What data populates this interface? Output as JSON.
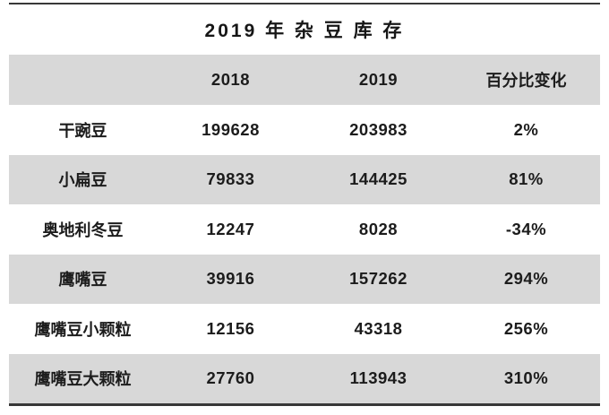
{
  "title": "2019 年 杂 豆 库 存",
  "header": {
    "col_label": "",
    "col_2018": "2018",
    "col_2019": "2019",
    "col_change": "百分比变化"
  },
  "rows": [
    {
      "label": "干豌豆",
      "v2018": "199628",
      "v2019": "203983",
      "change": "2%"
    },
    {
      "label": "小扁豆",
      "v2018": "79833",
      "v2019": "144425",
      "change": "81%"
    },
    {
      "label": "奥地利冬豆",
      "v2018": "12247",
      "v2019": "8028",
      "change": "-34%"
    },
    {
      "label": "鹰嘴豆",
      "v2018": "39916",
      "v2019": "157262",
      "change": "294%"
    },
    {
      "label": "鹰嘴豆小颗粒",
      "v2018": "12156",
      "v2019": "43318",
      "change": "256%"
    },
    {
      "label": "鹰嘴豆大颗粒",
      "v2018": "27760",
      "v2019": "113943",
      "change": "310%"
    }
  ],
  "colors": {
    "shaded_row": "#d8d8d8",
    "rule": "#383838",
    "text": "#1c1c1c",
    "background": "#ffffff"
  },
  "chart_data": {
    "type": "table",
    "title": "2019 年 杂 豆 库 存",
    "categories": [
      "干豌豆",
      "小扁豆",
      "奥地利冬豆",
      "鹰嘴豆",
      "鹰嘴豆小颗粒",
      "鹰嘴豆大颗粒"
    ],
    "series": [
      {
        "name": "2018",
        "values": [
          199628,
          79833,
          12247,
          39916,
          12156,
          27760
        ]
      },
      {
        "name": "2019",
        "values": [
          203983,
          144425,
          8028,
          157262,
          43318,
          113943
        ]
      },
      {
        "name": "百分比变化",
        "values": [
          "2%",
          "81%",
          "-34%",
          "294%",
          "256%",
          "310%"
        ]
      }
    ]
  }
}
